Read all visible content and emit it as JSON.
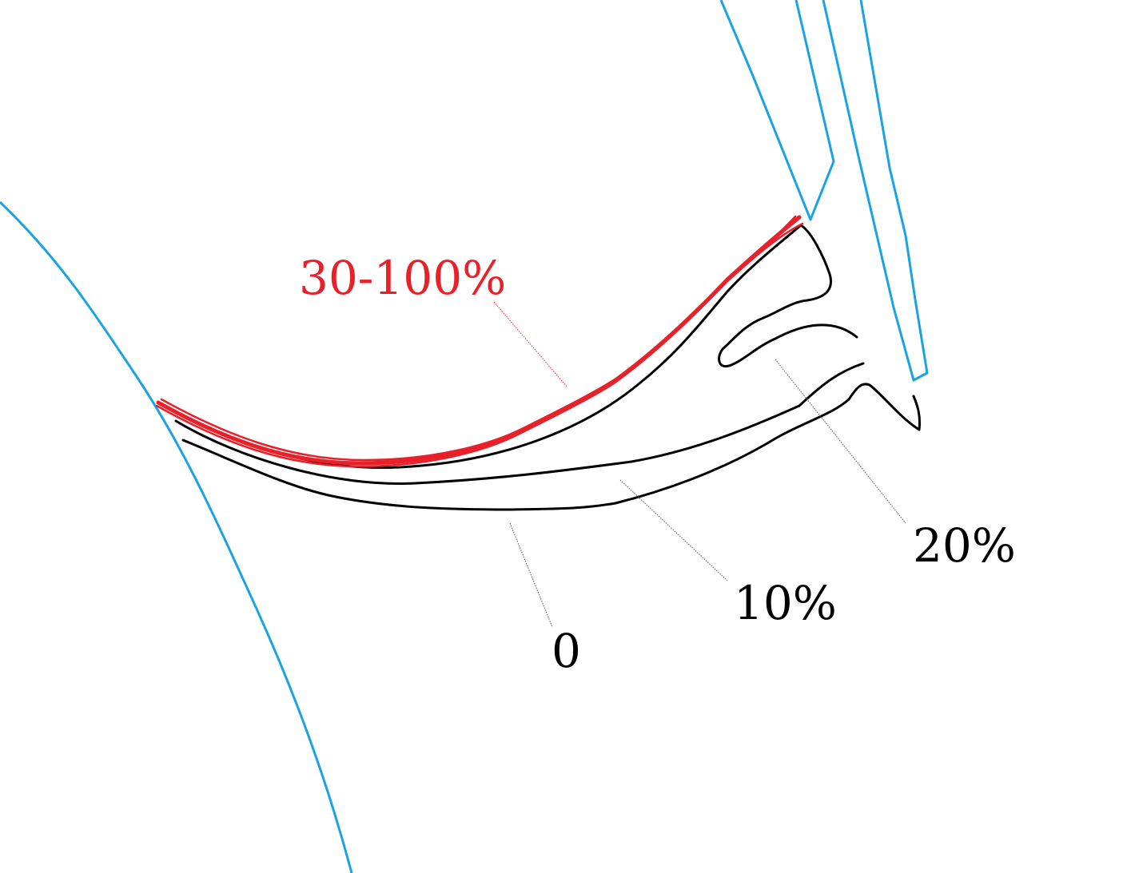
{
  "labels": {
    "range_30_100": "30-100%",
    "pct_20": "20%",
    "pct_10": "10%",
    "zero": "0"
  },
  "colors": {
    "outline": "#1aa3e3",
    "highlight": "#e8202a",
    "line": "#000000",
    "leader": "#555555"
  }
}
